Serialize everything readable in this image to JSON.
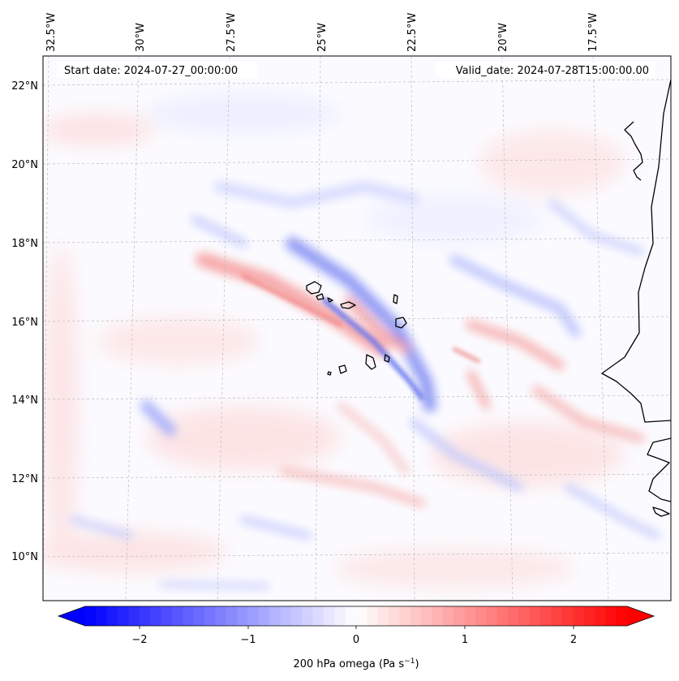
{
  "header": {
    "start_date": "Start date: 2024-07-27_00:00:00",
    "valid_date": "Valid_date: 2024-07-28T15:00:00.00"
  },
  "map": {
    "lon_ticks": [
      "32.5°W",
      "30°W",
      "27.5°W",
      "25°W",
      "22.5°W",
      "20°W",
      "17.5°W"
    ],
    "lat_ticks": [
      "22°N",
      "20°N",
      "18°N",
      "16°N",
      "14°N",
      "12°N",
      "10°N"
    ],
    "coastline_color": "#000000",
    "gridline_color": "#bbbbbb"
  },
  "colorbar": {
    "ticks": [
      "−2",
      "−1",
      "0",
      "1",
      "2"
    ],
    "label_main": "200 hPa omega (Pa s",
    "label_exp": "−1",
    "label_close": ")",
    "min_color": "#0000ff",
    "mid_color": "#ffffff",
    "max_color": "#ff0000"
  }
}
